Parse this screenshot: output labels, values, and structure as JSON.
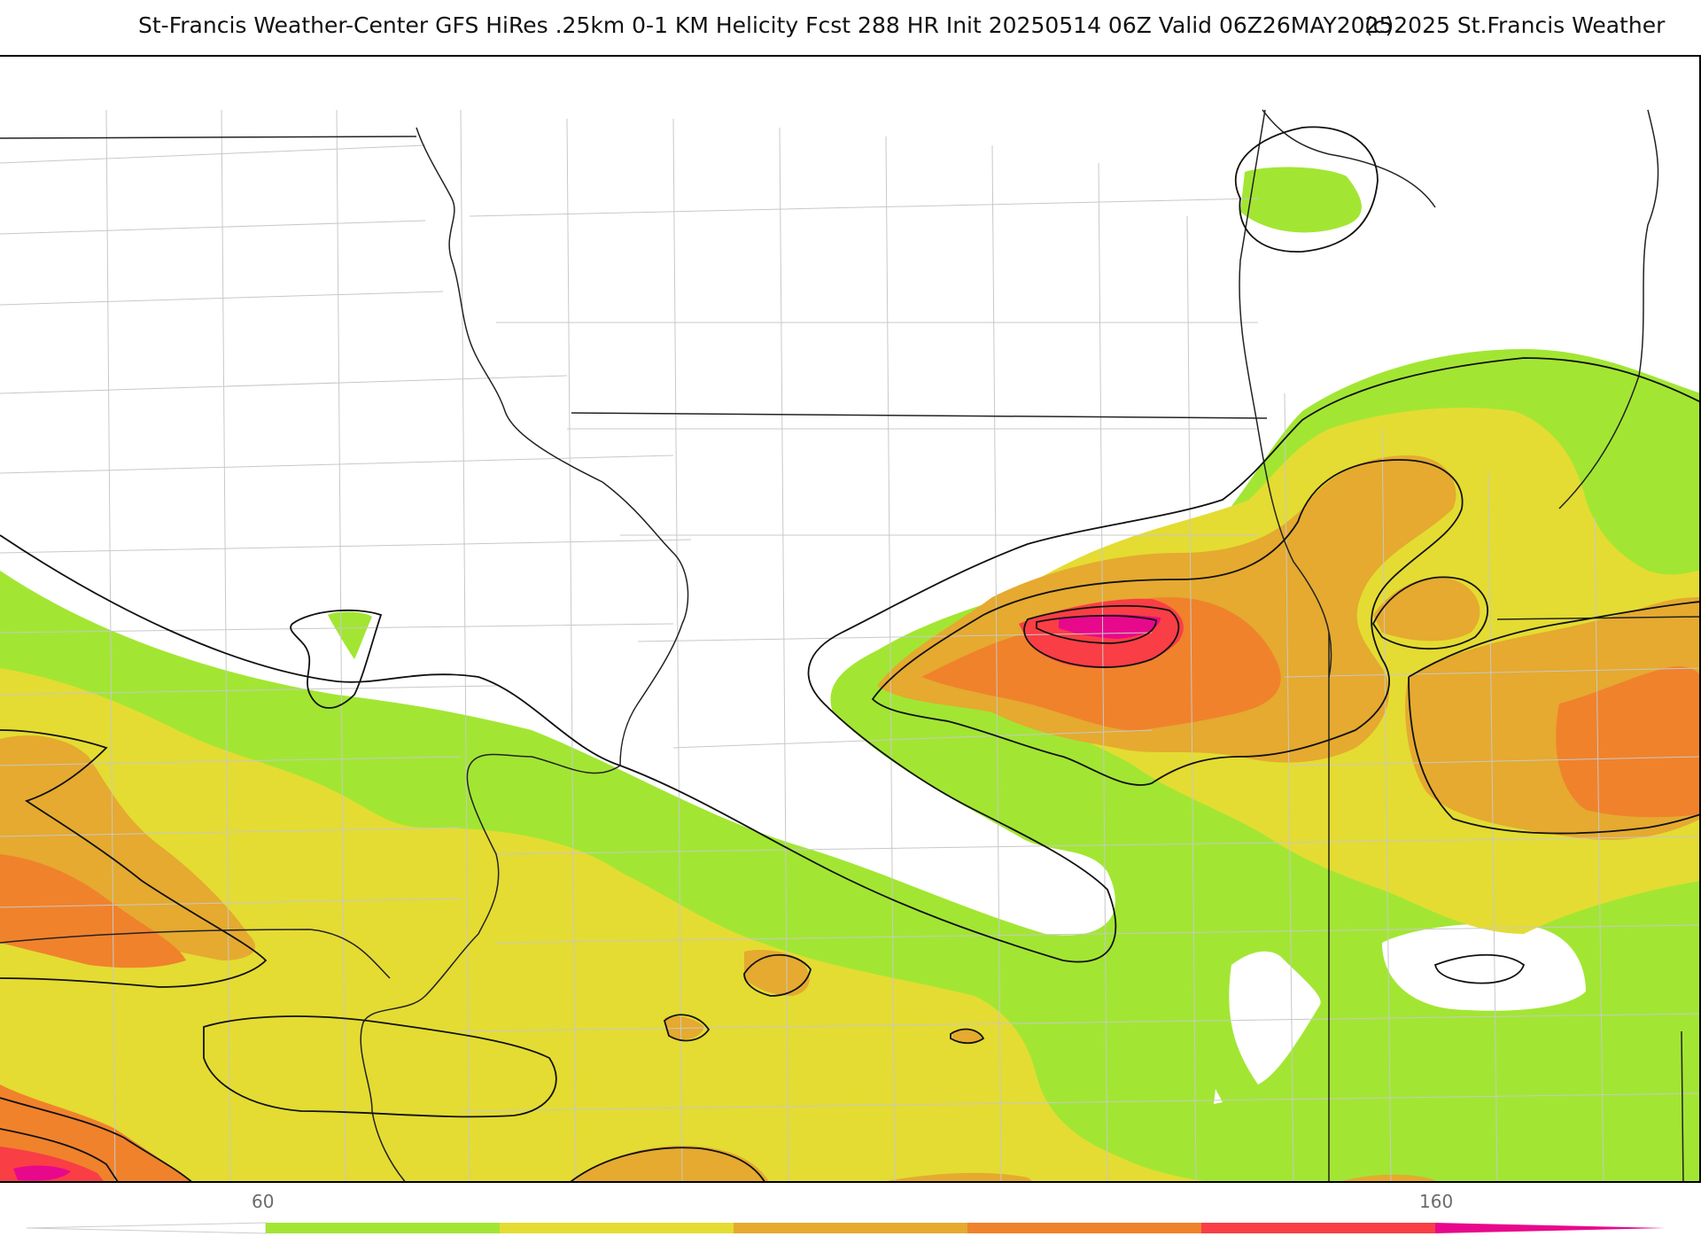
{
  "header": {
    "title": "St-Francis Weather-Center GFS HiRes .25km 0-1 KM Helicity Fcst 288 HR Init 20250514 06Z  Valid 06Z26MAY2025",
    "copyright": "(c)2025 St.Francis Weather"
  },
  "palette": {
    "band_60_80": "#a2e633",
    "band_80_100": "#e4dc32",
    "band_100_120": "#e5aa2f",
    "band_120_140": "#f0822c",
    "band_140_160": "#f93e45",
    "band_160_plus": "#e8088c",
    "contour": "#111111",
    "county_line": "#c8c8c8",
    "state_line": "#222222"
  },
  "colorbar": {
    "tick_labels": [
      "60",
      "160"
    ],
    "levels": [
      60,
      80,
      100,
      120,
      140,
      160
    ]
  }
}
